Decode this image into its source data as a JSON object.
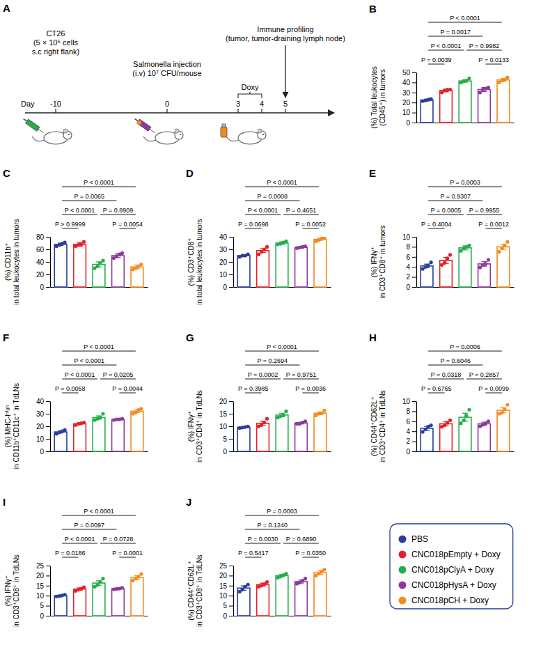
{
  "diagram": {
    "panel": "A",
    "timeline": {
      "label": "Day",
      "days": [
        -10,
        0,
        3,
        4,
        5
      ]
    },
    "events": [
      {
        "day": -10,
        "lines": [
          "CT26",
          "(5 × 10⁵ cells",
          "s.c right flank)"
        ]
      },
      {
        "day": 0,
        "lines": [
          "Salmonella injection",
          "(i.v) 10⁷ CFU/mouse"
        ]
      },
      {
        "days": [
          3,
          4
        ],
        "lines": [
          "Doxy"
        ]
      },
      {
        "day": 5,
        "lines": [
          "Immune profiling",
          "(tumor, tumor-draining lymph node)"
        ]
      }
    ]
  },
  "legend": {
    "position": "bottom-right",
    "entries": [
      {
        "name": "PBS",
        "color": "#2a3d9e"
      },
      {
        "name": "CNC018pEmpty + Doxy",
        "color": "#e8202a"
      },
      {
        "name": "CNC018pClyA + Doxy",
        "color": "#27ae4a"
      },
      {
        "name": "CNC018pHysA + Doxy",
        "color": "#8b3a9c"
      },
      {
        "name": "CNC018pCH + Doxy",
        "color": "#f58a1f"
      }
    ]
  },
  "chart_data": [
    {
      "panel": "B",
      "type": "bar",
      "y_label": [
        "(%) Total leukocytes",
        "(CD45⁺) in tumors"
      ],
      "categories": [
        "PBS",
        "CNC018pEmpty + Doxy",
        "CNC018pClyA + Doxy",
        "CNC018pHysA + Doxy",
        "CNC018pCH + Doxy"
      ],
      "colors": [
        "#2a3d9e",
        "#e8202a",
        "#27ae4a",
        "#8b3a9c",
        "#f58a1f"
      ],
      "values": [
        22.5,
        32,
        41.5,
        33,
        42.5
      ],
      "errors": [
        0.9,
        1.2,
        1.2,
        2,
        1.5
      ],
      "points": [
        [
          21.5,
          22,
          23,
          23.5
        ],
        [
          30,
          32,
          33,
          33
        ],
        [
          40,
          41,
          42,
          44
        ],
        [
          30,
          33,
          34,
          35
        ],
        [
          40,
          42,
          43,
          45
        ]
      ],
      "ylim": [
        0,
        50
      ],
      "yticks": [
        0,
        10,
        20,
        30,
        40,
        50
      ],
      "tick_labels": "y",
      "comparisons": [
        {
          "pair": [
            "PBS",
            "CNC018pCH + Doxy"
          ],
          "text": "P < 0.0001"
        },
        {
          "pair": [
            "PBS",
            "CNC018pHysA + Doxy"
          ],
          "text": "P = 0.0017"
        },
        {
          "pair": [
            "PBS",
            "CNC018pClyA + Doxy"
          ],
          "text": "P < 0.0001"
        },
        {
          "pair": [
            "CNC018pClyA + Doxy",
            "CNC018pCH + Doxy"
          ],
          "text": "P = 0.9982"
        },
        {
          "pair": [
            "PBS",
            "CNC018pEmpty + Doxy"
          ],
          "text": "P = 0.0039"
        },
        {
          "pair": [
            "CNC018pHysA + Doxy",
            "CNC018pCH + Doxy"
          ],
          "text": "P = 0.0133"
        }
      ]
    },
    {
      "panel": "C",
      "type": "bar",
      "y_label": [
        "(%) CD11b⁺",
        "in total leukocytes in tumors"
      ],
      "categories": [
        "PBS",
        "CNC018pEmpty + Doxy",
        "CNC018pClyA + Doxy",
        "CNC018pHysA + Doxy",
        "CNC018pCH + Doxy"
      ],
      "colors": [
        "#2a3d9e",
        "#e8202a",
        "#27ae4a",
        "#8b3a9c",
        "#f58a1f"
      ],
      "values": [
        68,
        68,
        36,
        50,
        32
      ],
      "errors": [
        2,
        3,
        4,
        3,
        3
      ],
      "points": [
        [
          65,
          67,
          69,
          71
        ],
        [
          65,
          67,
          68,
          72
        ],
        [
          30,
          33,
          38,
          42
        ],
        [
          46,
          49,
          52,
          54
        ],
        [
          28,
          30,
          33,
          36
        ]
      ],
      "ylim": [
        0,
        80
      ],
      "yticks": [
        0,
        20,
        40,
        60,
        80
      ],
      "tick_labels": "y",
      "comparisons": [
        {
          "pair": [
            "PBS",
            "CNC018pCH + Doxy"
          ],
          "text": "P < 0.0001"
        },
        {
          "pair": [
            "PBS",
            "CNC018pHysA + Doxy"
          ],
          "text": "P = 0.0065"
        },
        {
          "pair": [
            "PBS",
            "CNC018pClyA + Doxy"
          ],
          "text": "P < 0.0001"
        },
        {
          "pair": [
            "CNC018pClyA + Doxy",
            "CNC018pCH + Doxy"
          ],
          "text": "P = 0.8909"
        },
        {
          "pair": [
            "PBS",
            "CNC018pEmpty + Doxy"
          ],
          "text": "P > 0.9999"
        },
        {
          "pair": [
            "CNC018pHysA + Doxy",
            "CNC018pCH + Doxy"
          ],
          "text": "P = 0.0054"
        }
      ]
    },
    {
      "panel": "D",
      "type": "bar",
      "y_label": [
        "(%) CD3⁺CD8⁺",
        "in total leukocytes in tumors"
      ],
      "categories": [
        "PBS",
        "CNC018pEmpty + Doxy",
        "CNC018pClyA + Doxy",
        "CNC018pHysA + Doxy",
        "CNC018pCH + Doxy"
      ],
      "colors": [
        "#2a3d9e",
        "#e8202a",
        "#27ae4a",
        "#8b3a9c",
        "#f58a1f"
      ],
      "values": [
        25,
        29,
        35,
        31.5,
        38
      ],
      "errors": [
        0.6,
        1.5,
        1,
        0.6,
        0.8
      ],
      "points": [
        [
          24,
          25,
          25,
          26
        ],
        [
          26,
          28,
          30,
          32
        ],
        [
          34,
          34.5,
          35.5,
          36.5
        ],
        [
          31,
          31.5,
          32,
          32.5
        ],
        [
          36.5,
          37.5,
          38.5,
          39.5
        ]
      ],
      "ylim": [
        0,
        40
      ],
      "yticks": [
        0,
        10,
        20,
        30,
        40
      ],
      "tick_labels": "y",
      "comparisons": [
        {
          "pair": [
            "PBS",
            "CNC018pCH + Doxy"
          ],
          "text": "P < 0.0001"
        },
        {
          "pair": [
            "PBS",
            "CNC018pHysA + Doxy"
          ],
          "text": "P = 0.0008"
        },
        {
          "pair": [
            "PBS",
            "CNC018pClyA + Doxy"
          ],
          "text": "P < 0.0001"
        },
        {
          "pair": [
            "CNC018pClyA + Doxy",
            "CNC018pCH + Doxy"
          ],
          "text": "P = 0.4651"
        },
        {
          "pair": [
            "PBS",
            "CNC018pEmpty + Doxy"
          ],
          "text": "P = 0.0698"
        },
        {
          "pair": [
            "CNC018pHysA + Doxy",
            "CNC018pCH + Doxy"
          ],
          "text": "P = 0.0052"
        }
      ]
    },
    {
      "panel": "E",
      "type": "bar",
      "y_label": [
        "(%) IFNγ⁺",
        "in CD3⁺CD8⁺ in tumors"
      ],
      "categories": [
        "PBS",
        "CNC018pEmpty + Doxy",
        "CNC018pClyA + Doxy",
        "CNC018pHysA + Doxy",
        "CNC018pCH + Doxy"
      ],
      "colors": [
        "#2a3d9e",
        "#e8202a",
        "#27ae4a",
        "#8b3a9c",
        "#f58a1f"
      ],
      "values": [
        4.2,
        5.3,
        7.8,
        4.6,
        8
      ],
      "errors": [
        0.35,
        0.6,
        0.4,
        0.45,
        0.5
      ],
      "points": [
        [
          3.6,
          4,
          4.3,
          4.9
        ],
        [
          4.4,
          4.8,
          5.7,
          6.4
        ],
        [
          7.2,
          7.7,
          8,
          8.3
        ],
        [
          3.9,
          4.4,
          4.6,
          5.4
        ],
        [
          7,
          7.7,
          8.3,
          9
        ]
      ],
      "ylim": [
        0,
        10
      ],
      "yticks": [
        0,
        2,
        4,
        6,
        8,
        10
      ],
      "tick_labels": "y",
      "comparisons": [
        {
          "pair": [
            "PBS",
            "CNC018pCH + Doxy"
          ],
          "text": "P = 0.0003"
        },
        {
          "pair": [
            "PBS",
            "CNC018pHysA + Doxy"
          ],
          "text": "P = 0.9307"
        },
        {
          "pair": [
            "PBS",
            "CNC018pClyA + Doxy"
          ],
          "text": "P = 0.0005"
        },
        {
          "pair": [
            "CNC018pClyA + Doxy",
            "CNC018pCH + Doxy"
          ],
          "text": "P = 0.9955"
        },
        {
          "pair": [
            "PBS",
            "CNC018pEmpty + Doxy"
          ],
          "text": "P = 0.4004"
        },
        {
          "pair": [
            "CNC018pHysA + Doxy",
            "CNC018pCH + Doxy"
          ],
          "text": "P = 0.0012"
        }
      ]
    },
    {
      "panel": "F",
      "type": "bar",
      "y_label": [
        "(%) MHC-Iʰⁱᵍʰ",
        "in CD11b⁺CD11c⁺ in TdLNs"
      ],
      "categories": [
        "PBS",
        "CNC018pEmpty + Doxy",
        "CNC018pClyA + Doxy",
        "CNC018pHysA + Doxy",
        "CNC018pCH + Doxy"
      ],
      "colors": [
        "#2a3d9e",
        "#e8202a",
        "#27ae4a",
        "#8b3a9c",
        "#f58a1f"
      ],
      "values": [
        15.5,
        22,
        27,
        25.5,
        32
      ],
      "errors": [
        0.8,
        0.7,
        1.3,
        0.4,
        1.2
      ],
      "points": [
        [
          14,
          15,
          16,
          17
        ],
        [
          21,
          22,
          22.5,
          23
        ],
        [
          25,
          26,
          27,
          30
        ],
        [
          25,
          25.5,
          25.5,
          26
        ],
        [
          30,
          31,
          33,
          34
        ]
      ],
      "ylim": [
        0,
        40
      ],
      "yticks": [
        0,
        10,
        20,
        30,
        40
      ],
      "tick_labels": "y",
      "comparisons": [
        {
          "pair": [
            "PBS",
            "CNC018pCH + Doxy"
          ],
          "text": "P < 0.0001"
        },
        {
          "pair": [
            "PBS",
            "CNC018pHysA + Doxy"
          ],
          "text": "P < 0.0001"
        },
        {
          "pair": [
            "PBS",
            "CNC018pClyA + Doxy"
          ],
          "text": "P < 0.0001"
        },
        {
          "pair": [
            "CNC018pClyA + Doxy",
            "CNC018pCH + Doxy"
          ],
          "text": "P = 0.0205"
        },
        {
          "pair": [
            "PBS",
            "CNC018pEmpty + Doxy"
          ],
          "text": "P = 0.0058"
        },
        {
          "pair": [
            "CNC018pHysA + Doxy",
            "CNC018pCH + Doxy"
          ],
          "text": "P = 0.0044"
        }
      ]
    },
    {
      "panel": "G",
      "type": "bar",
      "y_label": [
        "(%) IFNγ⁺",
        "in CD3⁺CD4⁺ in TdLNs"
      ],
      "categories": [
        "PBS",
        "CNC018pEmpty + Doxy",
        "CNC018pClyA + Doxy",
        "CNC018pHysA + Doxy",
        "CNC018pCH + Doxy"
      ],
      "colors": [
        "#2a3d9e",
        "#e8202a",
        "#27ae4a",
        "#8b3a9c",
        "#f58a1f"
      ],
      "values": [
        9.6,
        11.2,
        14.5,
        11.3,
        15.2
      ],
      "errors": [
        0.2,
        0.8,
        0.7,
        0.35,
        0.5
      ],
      "points": [
        [
          9.3,
          9.5,
          9.7,
          9.9
        ],
        [
          10,
          10.5,
          11.5,
          13
        ],
        [
          13.5,
          14,
          14.5,
          16
        ],
        [
          11,
          11,
          11.5,
          12
        ],
        [
          14.3,
          15,
          15.2,
          16.3
        ]
      ],
      "ylim": [
        0,
        20
      ],
      "yticks": [
        0,
        5,
        10,
        15,
        20
      ],
      "tick_labels": "y",
      "comparisons": [
        {
          "pair": [
            "PBS",
            "CNC018pCH + Doxy"
          ],
          "text": "P < 0.0001"
        },
        {
          "pair": [
            "PBS",
            "CNC018pHysA + Doxy"
          ],
          "text": "P = 0.2694"
        },
        {
          "pair": [
            "PBS",
            "CNC018pClyA + Doxy"
          ],
          "text": "P = 0.0002"
        },
        {
          "pair": [
            "CNC018pClyA + Doxy",
            "CNC018pCH + Doxy"
          ],
          "text": "P = 0.9751"
        },
        {
          "pair": [
            "PBS",
            "CNC018pEmpty + Doxy"
          ],
          "text": "P = 0.3985"
        },
        {
          "pair": [
            "CNC018pHysA + Doxy",
            "CNC018pCH + Doxy"
          ],
          "text": "P = 0.0036"
        }
      ]
    },
    {
      "panel": "H",
      "type": "bar",
      "y_label": [
        "(%) CD44⁺CD62L⁺",
        "in CD3⁺CD4⁺ in TdLNs"
      ],
      "categories": [
        "PBS",
        "CNC018pEmpty + Doxy",
        "CNC018pClyA + Doxy",
        "CNC018pHysA + Doxy",
        "CNC018pCH + Doxy"
      ],
      "colors": [
        "#2a3d9e",
        "#e8202a",
        "#27ae4a",
        "#8b3a9c",
        "#f58a1f"
      ],
      "values": [
        4.6,
        5.5,
        6.8,
        5.5,
        8.2
      ],
      "errors": [
        0.4,
        0.4,
        0.8,
        0.3,
        0.5
      ],
      "points": [
        [
          3.9,
          4.4,
          4.9,
          5.2
        ],
        [
          4.9,
          5.2,
          5.7,
          6.2
        ],
        [
          5.6,
          6.2,
          7.1,
          8.3
        ],
        [
          5,
          5.3,
          5.6,
          6
        ],
        [
          7.5,
          7.7,
          8.4,
          9.3
        ]
      ],
      "ylim": [
        0,
        10
      ],
      "yticks": [
        0,
        2,
        4,
        6,
        8,
        10
      ],
      "tick_labels": "y",
      "comparisons": [
        {
          "pair": [
            "PBS",
            "CNC018pCH + Doxy"
          ],
          "text": "P = 0.0006"
        },
        {
          "pair": [
            "PBS",
            "CNC018pHysA + Doxy"
          ],
          "text": "P = 0.6046"
        },
        {
          "pair": [
            "PBS",
            "CNC018pClyA + Doxy"
          ],
          "text": "P = 0.0318"
        },
        {
          "pair": [
            "CNC018pClyA + Doxy",
            "CNC018pCH + Doxy"
          ],
          "text": "P = 0.2857"
        },
        {
          "pair": [
            "PBS",
            "CNC018pEmpty + Doxy"
          ],
          "text": "P = 0.6765"
        },
        {
          "pair": [
            "CNC018pHysA + Doxy",
            "CNC018pCH + Doxy"
          ],
          "text": "P = 0.0099"
        }
      ]
    },
    {
      "panel": "I",
      "type": "bar",
      "y_label": [
        "(%) IFNγ⁺",
        "in CD3⁺CD8⁺ in TdLNs"
      ],
      "categories": [
        "PBS",
        "CNC018pEmpty + Doxy",
        "CNC018pClyA + Doxy",
        "CNC018pHysA + Doxy",
        "CNC018pCH + Doxy"
      ],
      "colors": [
        "#2a3d9e",
        "#e8202a",
        "#27ae4a",
        "#8b3a9c",
        "#f58a1f"
      ],
      "values": [
        10,
        13.3,
        16.3,
        13.5,
        19
      ],
      "errors": [
        0.3,
        0.6,
        1.1,
        0.3,
        0.9
      ],
      "points": [
        [
          9.6,
          9.8,
          10.1,
          10.5
        ],
        [
          12.4,
          13,
          13.5,
          14.2
        ],
        [
          14.5,
          15.3,
          17,
          18.5
        ],
        [
          13.2,
          13.4,
          13.5,
          13.9
        ],
        [
          17.5,
          18.5,
          19.5,
          20.8
        ]
      ],
      "ylim": [
        0,
        25
      ],
      "yticks": [
        0,
        5,
        10,
        15,
        20,
        25
      ],
      "tick_labels": "y",
      "comparisons": [
        {
          "pair": [
            "PBS",
            "CNC018pCH + Doxy"
          ],
          "text": "P < 0.0001"
        },
        {
          "pair": [
            "PBS",
            "CNC018pHysA + Doxy"
          ],
          "text": "P = 0.0097"
        },
        {
          "pair": [
            "PBS",
            "CNC018pClyA + Doxy"
          ],
          "text": "P < 0.0001"
        },
        {
          "pair": [
            "CNC018pClyA + Doxy",
            "CNC018pCH + Doxy"
          ],
          "text": "P = 0.0728"
        },
        {
          "pair": [
            "PBS",
            "CNC018pEmpty + Doxy"
          ],
          "text": "P = 0.0186"
        },
        {
          "pair": [
            "CNC018pHysA + Doxy",
            "CNC018pCH + Doxy"
          ],
          "text": "P = 0.0001"
        }
      ]
    },
    {
      "panel": "J",
      "type": "bar",
      "y_label": [
        "(%) CD44⁺CD62L⁺",
        "in CD3⁺CD8⁺ in TdLNs"
      ],
      "categories": [
        "PBS",
        "CNC018pEmpty + Doxy",
        "CNC018pClyA + Doxy",
        "CNC018pHysA + Doxy",
        "CNC018pCH + Doxy"
      ],
      "colors": [
        "#2a3d9e",
        "#e8202a",
        "#27ae4a",
        "#8b3a9c",
        "#f58a1f"
      ],
      "values": [
        13.8,
        15.5,
        20,
        17,
        21.5
      ],
      "errors": [
        1.1,
        0.7,
        0.6,
        0.7,
        0.9
      ],
      "points": [
        [
          12,
          13,
          14.5,
          15.5
        ],
        [
          14.5,
          15,
          15.8,
          16.8
        ],
        [
          19,
          19.5,
          20.3,
          21
        ],
        [
          16,
          16.5,
          17.5,
          18.5
        ],
        [
          20,
          21,
          22,
          23
        ]
      ],
      "ylim": [
        0,
        25
      ],
      "yticks": [
        0,
        5,
        10,
        15,
        20,
        25
      ],
      "tick_labels": "y",
      "comparisons": [
        {
          "pair": [
            "PBS",
            "CNC018pCH + Doxy"
          ],
          "text": "P = 0.0003"
        },
        {
          "pair": [
            "PBS",
            "CNC018pHysA + Doxy"
          ],
          "text": "P = 0.1240"
        },
        {
          "pair": [
            "PBS",
            "CNC018pClyA + Doxy"
          ],
          "text": "P = 0.0030"
        },
        {
          "pair": [
            "CNC018pClyA + Doxy",
            "CNC018pCH + Doxy"
          ],
          "text": "P = 0.6890"
        },
        {
          "pair": [
            "PBS",
            "CNC018pEmpty + Doxy"
          ],
          "text": "P = 0.5417"
        },
        {
          "pair": [
            "CNC018pHysA + Doxy",
            "CNC018pCH + Doxy"
          ],
          "text": "P = 0.0350"
        }
      ]
    }
  ]
}
